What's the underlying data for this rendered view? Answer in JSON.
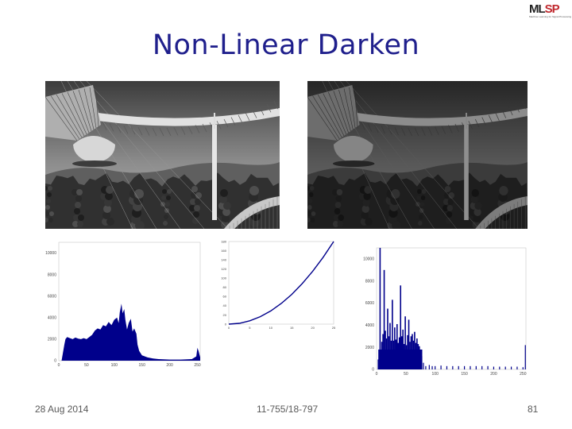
{
  "slide": {
    "title": "Non-Linear Darken",
    "logo_text_ml": "ML",
    "logo_text_sp": "SP",
    "logo_tagline": "Machine Learning for Signal Processing",
    "footer_date": "28 Aug 2014",
    "footer_course": "11-755/18-797",
    "footer_page": "81"
  },
  "images": {
    "left": {
      "name": "original-photo",
      "tone": 1.0
    },
    "right": {
      "name": "darkened-photo",
      "tone": 0.62
    }
  },
  "chart_data": [
    {
      "type": "bar",
      "name": "original-histogram",
      "x_ticks": [
        "0",
        "50",
        "100",
        "150",
        "200",
        "250"
      ],
      "y_ticks": [
        "0",
        "2000",
        "4000",
        "6000",
        "8000",
        "10000"
      ],
      "xlim": [
        0,
        255
      ],
      "ylim": [
        0,
        11000
      ],
      "color": "#00008b",
      "points": [
        [
          0,
          0
        ],
        [
          5,
          0
        ],
        [
          10,
          1500
        ],
        [
          12,
          2000
        ],
        [
          15,
          2200
        ],
        [
          20,
          2100
        ],
        [
          25,
          2000
        ],
        [
          30,
          2150
        ],
        [
          35,
          2050
        ],
        [
          40,
          2000
        ],
        [
          45,
          2100
        ],
        [
          50,
          2000
        ],
        [
          55,
          2200
        ],
        [
          60,
          2400
        ],
        [
          65,
          2800
        ],
        [
          70,
          3000
        ],
        [
          75,
          2900
        ],
        [
          80,
          3300
        ],
        [
          85,
          3200
        ],
        [
          90,
          3600
        ],
        [
          95,
          3300
        ],
        [
          100,
          3800
        ],
        [
          105,
          4000
        ],
        [
          108,
          3500
        ],
        [
          110,
          4500
        ],
        [
          113,
          5300
        ],
        [
          115,
          4400
        ],
        [
          118,
          4800
        ],
        [
          120,
          3800
        ],
        [
          123,
          2900
        ],
        [
          126,
          3500
        ],
        [
          130,
          3900
        ],
        [
          133,
          2700
        ],
        [
          136,
          3000
        ],
        [
          140,
          2500
        ],
        [
          142,
          1500
        ],
        [
          145,
          900
        ],
        [
          150,
          500
        ],
        [
          160,
          300
        ],
        [
          170,
          200
        ],
        [
          180,
          150
        ],
        [
          200,
          100
        ],
        [
          220,
          100
        ],
        [
          240,
          150
        ],
        [
          248,
          400
        ],
        [
          250,
          1200
        ],
        [
          252,
          900
        ],
        [
          255,
          300
        ]
      ]
    },
    {
      "type": "line",
      "name": "tone-curve",
      "x_ticks": [
        "0",
        "5",
        "10",
        "15",
        "20",
        "25"
      ],
      "y_ticks": [
        "0",
        "20",
        "40",
        "60",
        "80",
        "100",
        "120",
        "140",
        "160",
        "180"
      ],
      "xlim": [
        0,
        25
      ],
      "ylim": [
        0,
        180
      ],
      "color": "#00008b",
      "x": [
        0,
        2.5,
        5,
        7.5,
        10,
        12.5,
        15,
        17.5,
        20,
        22.5,
        25
      ],
      "y": [
        0,
        1.8,
        7.2,
        16.2,
        28.8,
        45,
        64.8,
        88.2,
        115.2,
        145.8,
        180
      ]
    },
    {
      "type": "bar",
      "name": "darkened-histogram",
      "x_ticks": [
        "0",
        "50",
        "100",
        "150",
        "200",
        "250"
      ],
      "y_ticks": [
        "0",
        "2000",
        "4000",
        "6000",
        "8000",
        "10000"
      ],
      "xlim": [
        0,
        255
      ],
      "ylim": [
        0,
        11000
      ],
      "color": "#00008b",
      "spikes": [
        [
          3,
          900
        ],
        [
          6,
          11000
        ],
        [
          9,
          2500
        ],
        [
          11,
          3200
        ],
        [
          13,
          9000
        ],
        [
          15,
          3500
        ],
        [
          17,
          2800
        ],
        [
          19,
          5500
        ],
        [
          21,
          3000
        ],
        [
          23,
          4200
        ],
        [
          25,
          2600
        ],
        [
          27,
          6300
        ],
        [
          29,
          2600
        ],
        [
          31,
          3800
        ],
        [
          33,
          2700
        ],
        [
          35,
          4100
        ],
        [
          37,
          2400
        ],
        [
          39,
          2900
        ],
        [
          41,
          7600
        ],
        [
          43,
          3000
        ],
        [
          45,
          3600
        ],
        [
          47,
          2300
        ],
        [
          49,
          4800
        ],
        [
          51,
          2200
        ],
        [
          53,
          3100
        ],
        [
          55,
          4500
        ],
        [
          57,
          2500
        ],
        [
          59,
          3000
        ],
        [
          61,
          3200
        ],
        [
          63,
          2600
        ],
        [
          65,
          3400
        ],
        [
          67,
          2400
        ],
        [
          69,
          2800
        ],
        [
          71,
          2300
        ],
        [
          73,
          2100
        ],
        [
          75,
          1800
        ],
        [
          77,
          1200
        ],
        [
          80,
          600
        ],
        [
          84,
          300
        ],
        [
          90,
          400
        ],
        [
          95,
          300
        ],
        [
          100,
          300
        ],
        [
          110,
          350
        ],
        [
          120,
          300
        ],
        [
          130,
          300
        ],
        [
          140,
          300
        ],
        [
          150,
          300
        ],
        [
          160,
          300
        ],
        [
          170,
          300
        ],
        [
          180,
          300
        ],
        [
          190,
          300
        ],
        [
          200,
          250
        ],
        [
          210,
          250
        ],
        [
          220,
          250
        ],
        [
          230,
          250
        ],
        [
          240,
          250
        ],
        [
          250,
          200
        ],
        [
          254,
          2200
        ]
      ]
    }
  ]
}
